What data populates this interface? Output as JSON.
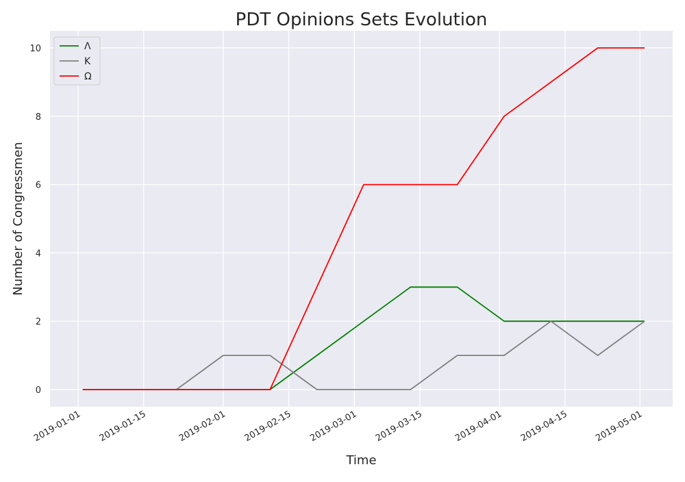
{
  "chart_data": {
    "type": "line",
    "title": "PDT Opinions Sets Evolution",
    "xlabel": "Time",
    "ylabel": "Number of Congressmen",
    "x": [
      "2019-01-02",
      "2019-01-12",
      "2019-01-22",
      "2019-02-01",
      "2019-02-11",
      "2019-02-21",
      "2019-03-03",
      "2019-03-13",
      "2019-03-23",
      "2019-04-02",
      "2019-04-12",
      "2019-04-22",
      "2019-05-02"
    ],
    "series": [
      {
        "name": "Λ",
        "color": "#008000",
        "values": [
          0,
          0,
          0,
          0,
          0,
          1,
          2,
          3,
          3,
          2,
          2,
          2,
          2
        ]
      },
      {
        "name": "K",
        "color": "#808080",
        "values": [
          0,
          0,
          0,
          1,
          1,
          0,
          0,
          0,
          1,
          1,
          2,
          1,
          2
        ]
      },
      {
        "name": "Ω",
        "color": "#ff0000",
        "values": [
          0,
          0,
          0,
          0,
          0,
          3,
          6,
          6,
          6,
          8,
          9,
          10,
          10
        ]
      }
    ],
    "xlim": [
      "2018-12-26",
      "2019-05-08"
    ],
    "ylim": [
      -0.5,
      10.5
    ],
    "xticks": [
      "2019-01-01",
      "2019-01-15",
      "2019-02-01",
      "2019-02-15",
      "2019-03-01",
      "2019-03-15",
      "2019-04-01",
      "2019-04-15",
      "2019-05-01"
    ],
    "yticks": [
      0,
      2,
      4,
      6,
      8,
      10
    ],
    "grid": true,
    "legend_position": "top-left",
    "colors": {
      "plot_background": "#eaeaf2",
      "grid": "#ffffff"
    }
  }
}
